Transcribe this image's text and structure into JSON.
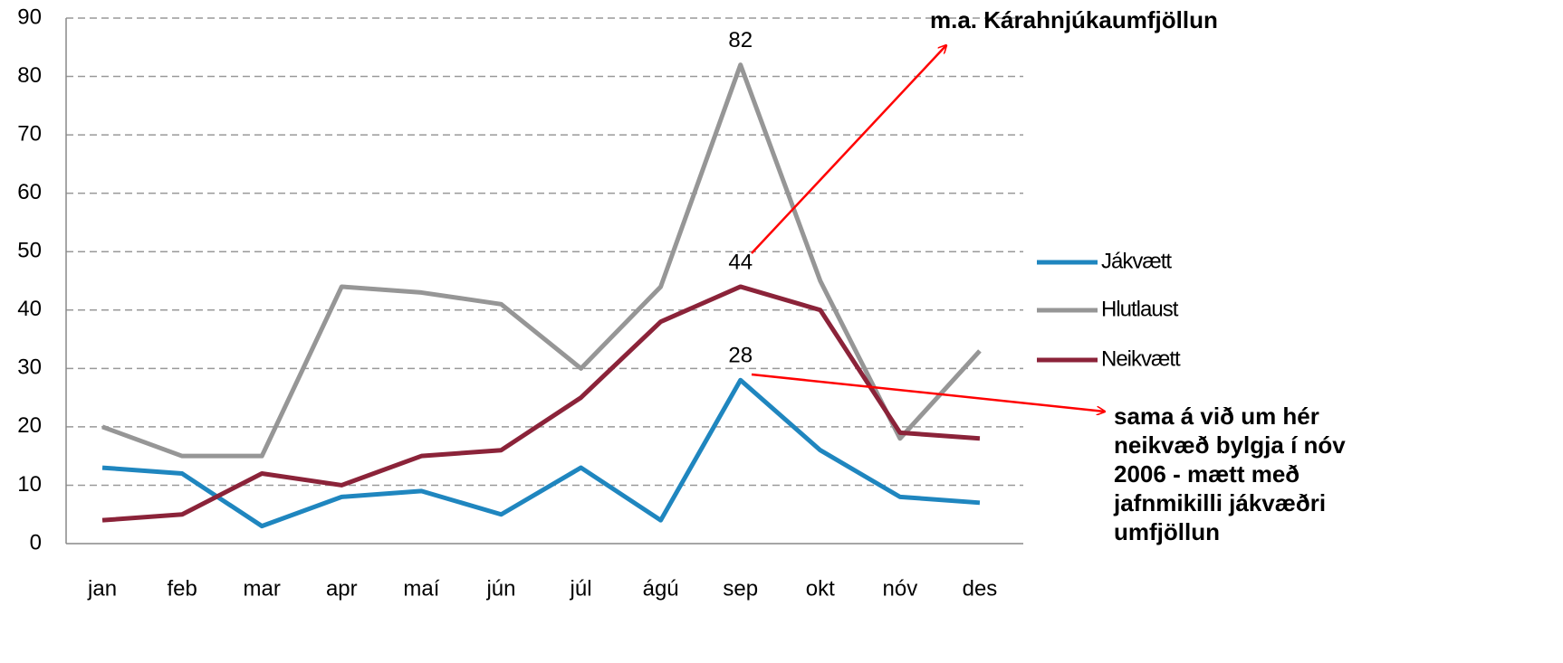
{
  "chart_data": {
    "type": "line",
    "categories": [
      "jan",
      "feb",
      "mar",
      "apr",
      "maí",
      "jún",
      "júl",
      "ágú",
      "sep",
      "okt",
      "nóv",
      "des"
    ],
    "series": [
      {
        "name": "Jákvætt",
        "color": "#1f86bf",
        "values": [
          13,
          12,
          3,
          8,
          9,
          5,
          13,
          4,
          28,
          16,
          8,
          7
        ]
      },
      {
        "name": "Hlutlaust",
        "color": "#969696",
        "values": [
          20,
          15,
          15,
          44,
          43,
          41,
          30,
          44,
          82,
          45,
          18,
          33
        ]
      },
      {
        "name": "Neikvætt",
        "color": "#8b2339",
        "values": [
          4,
          5,
          12,
          10,
          15,
          16,
          25,
          38,
          44,
          40,
          19,
          18
        ]
      }
    ],
    "ylim": [
      0,
      90
    ],
    "yticks": [
      0,
      10,
      20,
      30,
      40,
      50,
      60,
      70,
      80,
      90
    ],
    "grid": true,
    "legend": "right",
    "annotations": [
      {
        "lines": [
          "m.a. Kárahnjúkaumfjöllun"
        ]
      },
      {
        "lines": [
          "sama á við um hér",
          "neikvæð bylgja í nóv",
          "2006 -  mætt með",
          "jafnmikilli jákvæðri",
          "umfjöllun"
        ]
      }
    ]
  }
}
